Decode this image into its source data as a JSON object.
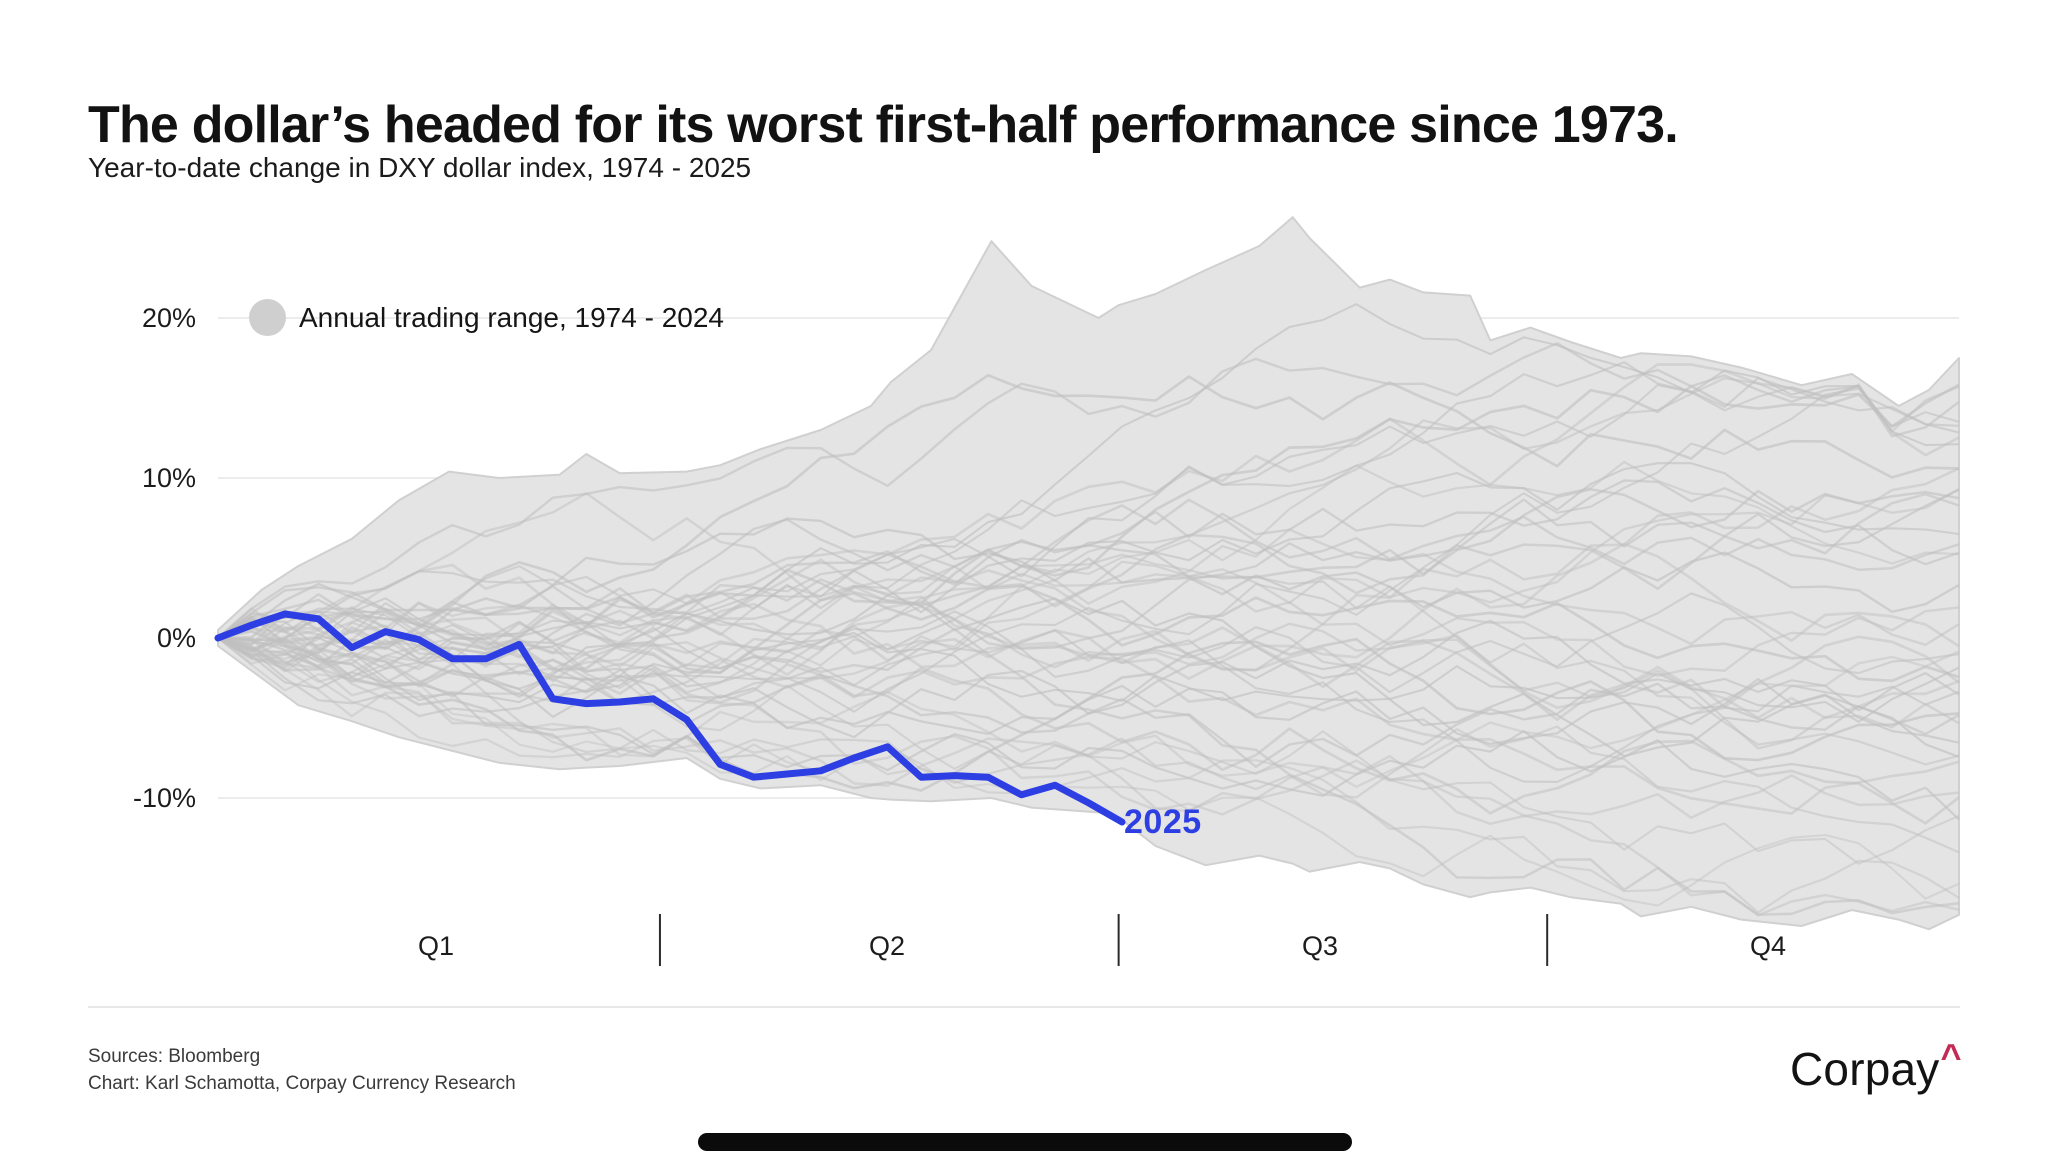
{
  "chart_data": {
    "type": "line",
    "title": "The dollar’s headed for its worst first-half performance since 1973.",
    "subtitle": "Year-to-date change in DXY dollar index, 1974 - 2025",
    "legend": [
      {
        "label": "Annual trading range, 1974 - 2024",
        "swatch_color": "#cfcfcf"
      }
    ],
    "x_axis": {
      "labels": [
        "Q1",
        "Q2",
        "Q3",
        "Q4"
      ],
      "divider_weeks": [
        13.2,
        26.9,
        39.7
      ],
      "range_weeks": [
        0,
        52
      ],
      "grid": false
    },
    "y_axis": {
      "tick_labels": [
        "20%",
        "10%",
        "0%",
        "-10%"
      ],
      "tick_values": [
        20,
        10,
        0,
        -10
      ],
      "unit": "percent",
      "range": [
        -20,
        29
      ],
      "grid": true
    },
    "series": [
      {
        "name": "2025",
        "color": "#2d3fe3",
        "x_unit": "week_of_year",
        "x_start": 0,
        "values": [
          0.0,
          0.8,
          1.5,
          1.2,
          -0.6,
          0.4,
          -0.1,
          -1.3,
          -1.3,
          -0.4,
          -3.8,
          -4.1,
          -4.0,
          -3.8,
          -5.1,
          -7.9,
          -8.7,
          -8.5,
          -8.3,
          -7.5,
          -6.8,
          -8.7,
          -8.6,
          -8.7,
          -9.8,
          -9.2,
          -10.3,
          -11.5
        ],
        "end_label": "2025"
      }
    ],
    "band": {
      "name": "Annual trading range, 1974 - 2024",
      "fill": "#e4e4e4",
      "line_color": "#c0c0c0",
      "edge_color": "#d0d0d0",
      "points": [
        [
          0,
          0.5,
          -0.5
        ],
        [
          1.3,
          3.0,
          -2.5
        ],
        [
          2.4,
          4.5,
          -4.2
        ],
        [
          4,
          6.2,
          -5.2
        ],
        [
          5.4,
          8.6,
          -6.2
        ],
        [
          6.9,
          10.4,
          -7.0
        ],
        [
          8.4,
          10.0,
          -7.8
        ],
        [
          10.2,
          10.2,
          -8.2
        ],
        [
          11,
          11.5,
          -8.1
        ],
        [
          12,
          10.3,
          -8.0
        ],
        [
          14,
          10.4,
          -7.5
        ],
        [
          15,
          10.8,
          -8.8
        ],
        [
          16.2,
          11.8,
          -9.4
        ],
        [
          18,
          13.0,
          -9.2
        ],
        [
          19.5,
          14.5,
          -10.0
        ],
        [
          20.1,
          16.0,
          -10.1
        ],
        [
          21.3,
          18.0,
          -10.2
        ],
        [
          23.1,
          24.8,
          -10.0
        ],
        [
          24.3,
          22.0,
          -10.6
        ],
        [
          26.3,
          20.0,
          -10.9
        ],
        [
          26.9,
          20.8,
          -11.2
        ],
        [
          28,
          21.5,
          -13.0
        ],
        [
          29.5,
          23.0,
          -14.2
        ],
        [
          31.1,
          24.5,
          -13.6
        ],
        [
          32.1,
          26.3,
          -14.1
        ],
        [
          32.6,
          25.0,
          -14.6
        ],
        [
          34.1,
          21.9,
          -14.0
        ],
        [
          35,
          22.4,
          -14.4
        ],
        [
          36,
          21.6,
          -15.4
        ],
        [
          37.4,
          21.4,
          -16.2
        ],
        [
          38,
          18.6,
          -15.9
        ],
        [
          39.2,
          19.4,
          -15.6
        ],
        [
          40.4,
          18.5,
          -16.2
        ],
        [
          41.9,
          17.5,
          -16.6
        ],
        [
          42.5,
          17.8,
          -17.4
        ],
        [
          44,
          17.6,
          -16.8
        ],
        [
          45.5,
          16.9,
          -17.6
        ],
        [
          47.3,
          15.8,
          -18.0
        ],
        [
          48.8,
          16.5,
          -17.0
        ],
        [
          50.2,
          14.5,
          -17.6
        ],
        [
          51.1,
          15.5,
          -18.2
        ],
        [
          52,
          17.5,
          -17.3
        ]
      ]
    }
  },
  "footer": {
    "sources": "Sources: Bloomberg",
    "credit": "Chart: Karl Schamotta, Corpay Currency Research",
    "logo_text": "Corpay",
    "logo_mark": "^",
    "logo_mark_color": "#c42a55"
  }
}
